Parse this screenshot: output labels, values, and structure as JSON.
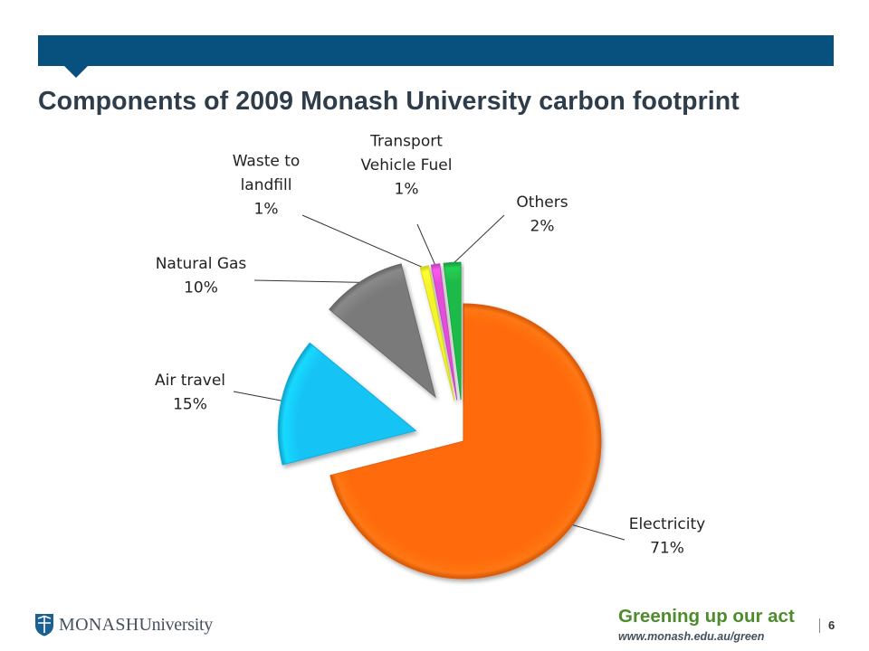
{
  "header": {
    "title": "Components of 2009 Monash University carbon footprint"
  },
  "chart_data": {
    "type": "pie",
    "title": "",
    "unit": "%",
    "slices": [
      {
        "name": "Electricity",
        "value": 71,
        "label": "71%",
        "color": "#ff6a10"
      },
      {
        "name": "Air travel",
        "value": 15,
        "label": "15%",
        "color": "#14c3f5"
      },
      {
        "name": "Natural Gas",
        "value": 10,
        "label": "10%",
        "color": "#7a7a7a"
      },
      {
        "name": "Waste to landfill",
        "value": 1,
        "label": "1%",
        "color": "#f4f42a"
      },
      {
        "name": "Transport Vehicle Fuel",
        "value": 1,
        "label": "1%",
        "color": "#e44ed8"
      },
      {
        "name": "Others",
        "value": 2,
        "label": "2%",
        "color": "#1fbb4a"
      }
    ],
    "label_lines": [
      [
        "Electricity",
        "71%"
      ],
      [
        "Air travel",
        "15%"
      ],
      [
        "Natural Gas",
        "10%"
      ],
      [
        "Waste to",
        "landfill",
        "1%"
      ],
      [
        "Transport",
        "Vehicle Fuel",
        "1%"
      ],
      [
        "Others",
        "2%"
      ]
    ]
  },
  "footer": {
    "logo_word_1": "MONASH",
    "logo_word_2": "University",
    "tagline": "Greening up our act",
    "url": "www.monash.edu.au/green",
    "page_number": "6"
  },
  "colors": {
    "header_bar": "#08507e",
    "title_text": "#2f3d4a",
    "tagline": "#4c8c2b"
  },
  "icons": {
    "logo": "monash-crest-icon"
  }
}
